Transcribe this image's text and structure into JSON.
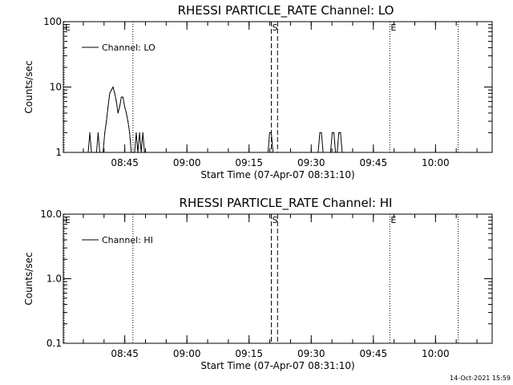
{
  "chart_data": [
    {
      "type": "line",
      "title": "RHESSI PARTICLE_RATE Channel: LO",
      "xlabel": "Start Time (07-Apr-07 08:31:10)",
      "ylabel": "Counts/sec",
      "yscale": "log",
      "ylim": [
        1,
        100
      ],
      "y_ticks": [
        {
          "value": 1,
          "label": "1"
        },
        {
          "value": 10,
          "label": "10"
        },
        {
          "value": 100,
          "label": "100"
        }
      ],
      "xlim_minutes": [
        0,
        103.5
      ],
      "x_ticks": [
        {
          "t": 14.83,
          "label": "08:45"
        },
        {
          "t": 29.83,
          "label": "09:00"
        },
        {
          "t": 44.83,
          "label": "09:15"
        },
        {
          "t": 59.83,
          "label": "09:30"
        },
        {
          "t": 74.83,
          "label": "09:45"
        },
        {
          "t": 89.83,
          "label": "10:00"
        }
      ],
      "legend": "Channel: LO",
      "legend_position": "top-left",
      "markers": [
        {
          "t": 0.2,
          "label": "E",
          "style": "dotted"
        },
        {
          "t": 16.8,
          "label": "",
          "style": "dotted"
        },
        {
          "t": 50.2,
          "label": "S",
          "style": "dashed"
        },
        {
          "t": 51.7,
          "label": "",
          "style": "dashed"
        },
        {
          "t": 78.8,
          "label": "E",
          "style": "dotted"
        },
        {
          "t": 95.3,
          "label": "",
          "style": "dotted"
        }
      ],
      "series": [
        {
          "name": "Channel: LO",
          "x": [
            6.0,
            6.4,
            6.8,
            7.2,
            7.6,
            8.0,
            8.4,
            8.8,
            9.2,
            9.6,
            10.0,
            10.4,
            10.8,
            11.2,
            11.6,
            12.0,
            12.4,
            12.8,
            13.2,
            13.6,
            14.0,
            14.4,
            14.8,
            15.2,
            15.6,
            16.0,
            16.4,
            16.8,
            17.2,
            17.6,
            18.0,
            18.4,
            18.8,
            19.2,
            19.6,
            49.4,
            49.8,
            50.2,
            50.6,
            61.5,
            61.9,
            62.3,
            62.7,
            64.5,
            64.9,
            65.3,
            65.7,
            66.1,
            66.5,
            66.9,
            67.3,
            67.7
          ],
          "values": [
            1,
            2,
            1,
            1,
            1,
            1,
            2,
            1,
            1,
            1,
            2,
            3,
            5,
            8,
            9,
            10,
            8,
            6,
            4,
            5,
            7,
            7,
            5,
            4,
            3,
            2,
            1,
            1,
            1,
            2,
            1,
            2,
            1,
            2,
            1,
            1,
            2,
            2,
            1,
            1,
            2,
            2,
            1,
            1,
            2,
            2,
            1,
            1,
            2,
            2,
            1,
            1
          ]
        }
      ]
    },
    {
      "type": "line",
      "title": "RHESSI PARTICLE_RATE Channel: HI",
      "xlabel": "Start Time (07-Apr-07 08:31:10)",
      "ylabel": "Counts/sec",
      "yscale": "log",
      "ylim": [
        0.1,
        10
      ],
      "y_ticks": [
        {
          "value": 0.1,
          "label": "0.1"
        },
        {
          "value": 1,
          "label": "1.0"
        },
        {
          "value": 10,
          "label": "10.0"
        }
      ],
      "xlim_minutes": [
        0,
        103.5
      ],
      "x_ticks": [
        {
          "t": 14.83,
          "label": "08:45"
        },
        {
          "t": 29.83,
          "label": "09:00"
        },
        {
          "t": 44.83,
          "label": "09:15"
        },
        {
          "t": 59.83,
          "label": "09:30"
        },
        {
          "t": 74.83,
          "label": "09:45"
        },
        {
          "t": 89.83,
          "label": "10:00"
        }
      ],
      "legend": "Channel: HI",
      "legend_position": "top-left",
      "markers": [
        {
          "t": 0.2,
          "label": "E",
          "style": "dotted"
        },
        {
          "t": 16.8,
          "label": "",
          "style": "dotted"
        },
        {
          "t": 50.2,
          "label": "S",
          "style": "dashed"
        },
        {
          "t": 51.7,
          "label": "",
          "style": "dashed"
        },
        {
          "t": 78.8,
          "label": "E",
          "style": "dotted"
        },
        {
          "t": 95.3,
          "label": "",
          "style": "dotted"
        }
      ],
      "series": [
        {
          "name": "Channel: HI",
          "x": [],
          "values": []
        }
      ]
    }
  ],
  "timestamp": "14-Oct-2021 15:59"
}
